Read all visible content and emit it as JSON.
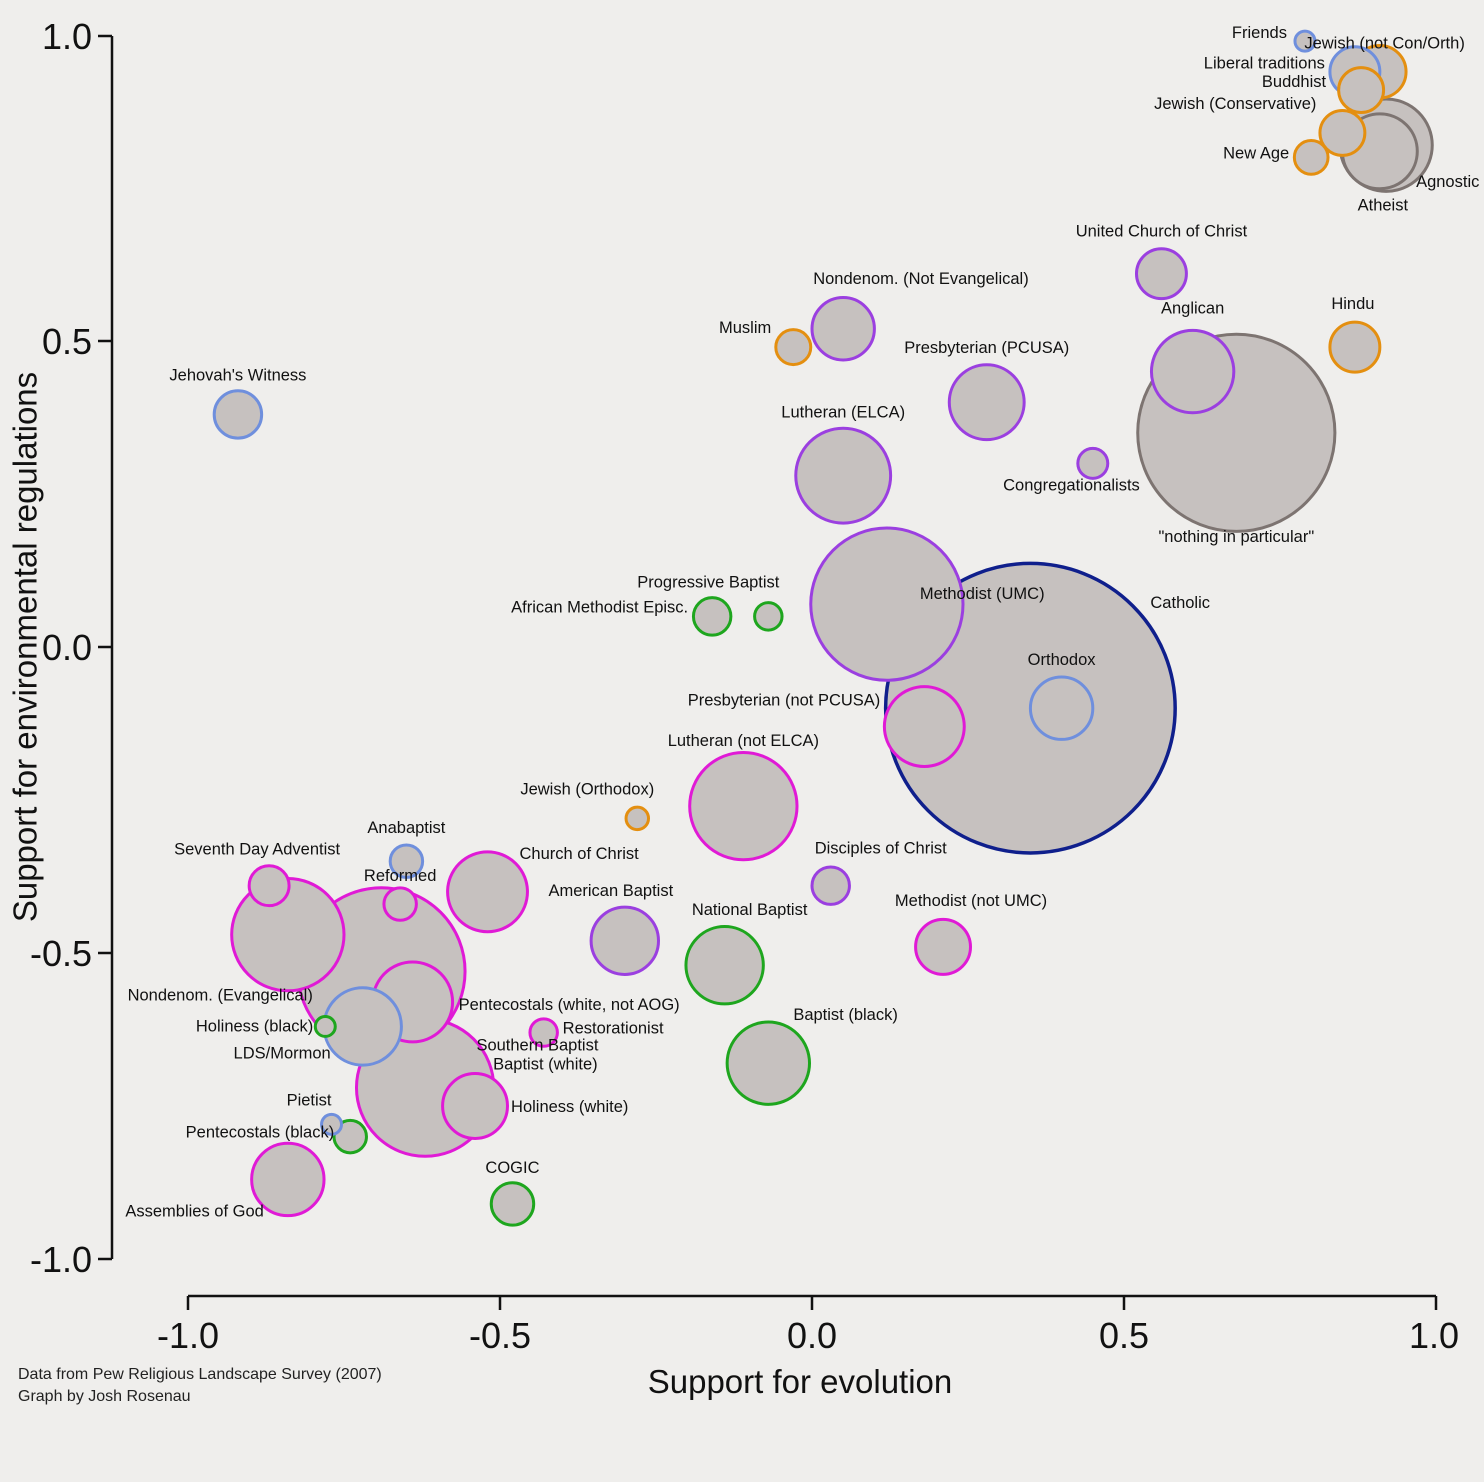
{
  "chart_data": {
    "type": "scatter",
    "subtype": "bubble",
    "xlabel": "Support for evolution",
    "ylabel": "Support for environmental regulations",
    "xlim": [
      -1.0,
      1.0
    ],
    "ylim": [
      -1.0,
      1.0
    ],
    "x_ticks": [
      "-1.0",
      "-0.5",
      "0.0",
      "0.5",
      "1.0"
    ],
    "y_ticks": [
      "1.0",
      "0.5",
      "0.0",
      "-0.5",
      "-1.0"
    ],
    "grid": false,
    "credits": [
      "Data from Pew Religious Landscape Survey (2007)",
      "Graph by Josh Rosenau"
    ],
    "colors": {
      "mainline": "#9b3fe0",
      "evangelical": "#e01ad6",
      "black_protestant": "#1ea61e",
      "other_christian": "#6f8fdd",
      "catholic": "#0f1f8c",
      "other_religion": "#e48f10",
      "unaffiliated": "#7d7471",
      "fill": "#c6c1bf"
    },
    "points": [
      {
        "name": "Jewish (not Con/Orth)",
        "x": 0.91,
        "y": 0.94,
        "r": 0.042,
        "group": "other_religion"
      },
      {
        "name": "Friends",
        "x": 0.79,
        "y": 0.99,
        "r": 0.016,
        "group": "other_christian"
      },
      {
        "name": "Liberal traditions",
        "x": 0.87,
        "y": 0.94,
        "r": 0.04,
        "group": "other_christian"
      },
      {
        "name": "Buddhist",
        "x": 0.88,
        "y": 0.91,
        "r": 0.036,
        "group": "other_religion"
      },
      {
        "name": "Agnostic",
        "x": 0.92,
        "y": 0.82,
        "r": 0.074,
        "group": "unaffiliated"
      },
      {
        "name": "Atheist",
        "x": 0.91,
        "y": 0.81,
        "r": 0.06,
        "group": "unaffiliated"
      },
      {
        "name": "Jewish (Conservative)",
        "x": 0.85,
        "y": 0.84,
        "r": 0.036,
        "group": "other_religion"
      },
      {
        "name": "New Age",
        "x": 0.8,
        "y": 0.8,
        "r": 0.027,
        "group": "other_religion"
      },
      {
        "name": "United Church of Christ",
        "x": 0.56,
        "y": 0.61,
        "r": 0.04,
        "group": "mainline"
      },
      {
        "name": "Hindu",
        "x": 0.87,
        "y": 0.49,
        "r": 0.04,
        "group": "other_religion"
      },
      {
        "name": "\"nothing in particular\"",
        "x": 0.68,
        "y": 0.35,
        "r": 0.158,
        "group": "unaffiliated"
      },
      {
        "name": "Anglican",
        "x": 0.61,
        "y": 0.45,
        "r": 0.066,
        "group": "mainline"
      },
      {
        "name": "Congregationalists",
        "x": 0.45,
        "y": 0.3,
        "r": 0.024,
        "group": "mainline"
      },
      {
        "name": "Nondenom. (Not Evangelical)",
        "x": 0.05,
        "y": 0.52,
        "r": 0.05,
        "group": "mainline"
      },
      {
        "name": "Muslim",
        "x": -0.03,
        "y": 0.49,
        "r": 0.028,
        "group": "other_religion"
      },
      {
        "name": "Presbyterian (PCUSA)",
        "x": 0.28,
        "y": 0.4,
        "r": 0.06,
        "group": "mainline"
      },
      {
        "name": "Lutheran (ELCA)",
        "x": 0.05,
        "y": 0.28,
        "r": 0.076,
        "group": "mainline"
      },
      {
        "name": "Jehovah's Witness",
        "x": -0.92,
        "y": 0.38,
        "r": 0.038,
        "group": "other_christian"
      },
      {
        "name": "Methodist (UMC)",
        "x": 0.12,
        "y": 0.07,
        "r": 0.122,
        "group": "mainline"
      },
      {
        "name": "Catholic",
        "x": 0.35,
        "y": -0.1,
        "r": 0.232,
        "group": "catholic"
      },
      {
        "name": "Orthodox",
        "x": 0.4,
        "y": -0.1,
        "r": 0.05,
        "group": "other_christian"
      },
      {
        "name": "Progressive Baptist",
        "x": -0.07,
        "y": 0.05,
        "r": 0.022,
        "group": "black_protestant"
      },
      {
        "name": "African Methodist Episc.",
        "x": -0.16,
        "y": 0.05,
        "r": 0.03,
        "group": "black_protestant"
      },
      {
        "name": "Presbyterian (not PCUSA)",
        "x": 0.18,
        "y": -0.13,
        "r": 0.064,
        "group": "evangelical"
      },
      {
        "name": "Lutheran (not ELCA)",
        "x": -0.11,
        "y": -0.26,
        "r": 0.086,
        "group": "evangelical"
      },
      {
        "name": "Jewish (Orthodox)",
        "x": -0.28,
        "y": -0.28,
        "r": 0.018,
        "group": "other_religion"
      },
      {
        "name": "Disciples of Christ",
        "x": 0.03,
        "y": -0.39,
        "r": 0.03,
        "group": "mainline"
      },
      {
        "name": "Church of Christ",
        "x": -0.52,
        "y": -0.4,
        "r": 0.064,
        "group": "evangelical"
      },
      {
        "name": "Anabaptist",
        "x": -0.65,
        "y": -0.35,
        "r": 0.026,
        "group": "other_christian"
      },
      {
        "name": "Seventh Day Adventist",
        "x": -0.87,
        "y": -0.39,
        "r": 0.032,
        "group": "evangelical"
      },
      {
        "name": "Reformed",
        "x": -0.66,
        "y": -0.42,
        "r": 0.026,
        "group": "evangelical"
      },
      {
        "name": "American Baptist",
        "x": -0.3,
        "y": -0.48,
        "r": 0.054,
        "group": "mainline"
      },
      {
        "name": "National Baptist",
        "x": -0.14,
        "y": -0.52,
        "r": 0.062,
        "group": "black_protestant"
      },
      {
        "name": "Methodist (not UMC)",
        "x": 0.21,
        "y": -0.49,
        "r": 0.044,
        "group": "evangelical"
      },
      {
        "name": "Nondenom. (Evangelical)",
        "x": -0.84,
        "y": -0.47,
        "r": 0.09,
        "group": "evangelical"
      },
      {
        "name": "Southern Baptist",
        "x": -0.69,
        "y": -0.53,
        "r": 0.134,
        "group": "evangelical"
      },
      {
        "name": "Pentecostals (white, not AOG)",
        "x": -0.64,
        "y": -0.58,
        "r": 0.064,
        "group": "evangelical"
      },
      {
        "name": "Baptist (white)",
        "x": -0.62,
        "y": -0.72,
        "r": 0.11,
        "group": "evangelical"
      },
      {
        "name": "Holiness (white)",
        "x": -0.54,
        "y": -0.75,
        "r": 0.052,
        "group": "evangelical"
      },
      {
        "name": "Restorationist",
        "x": -0.43,
        "y": -0.63,
        "r": 0.022,
        "group": "evangelical"
      },
      {
        "name": "Baptist (black)",
        "x": -0.07,
        "y": -0.68,
        "r": 0.066,
        "group": "black_protestant"
      },
      {
        "name": "LDS/Mormon",
        "x": -0.72,
        "y": -0.62,
        "r": 0.062,
        "group": "other_christian"
      },
      {
        "name": "Holiness (black)",
        "x": -0.78,
        "y": -0.62,
        "r": 0.016,
        "group": "black_protestant"
      },
      {
        "name": "Pietist",
        "x": -0.77,
        "y": -0.78,
        "r": 0.016,
        "group": "other_christian"
      },
      {
        "name": "Pentecostals (black)",
        "x": -0.74,
        "y": -0.8,
        "r": 0.026,
        "group": "black_protestant"
      },
      {
        "name": "Assemblies of God",
        "x": -0.84,
        "y": -0.87,
        "r": 0.058,
        "group": "evangelical"
      },
      {
        "name": "COGIC",
        "x": -0.48,
        "y": -0.91,
        "r": 0.034,
        "group": "black_protestant"
      }
    ]
  }
}
